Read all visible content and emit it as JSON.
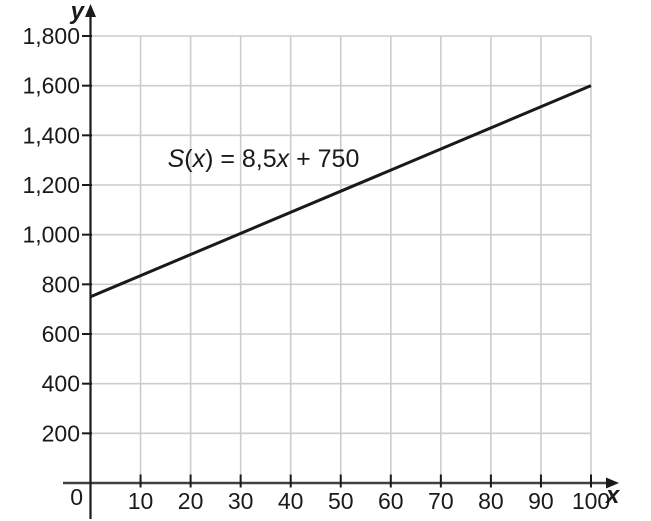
{
  "figure": {
    "background": "#ffffff"
  },
  "chart_data": {
    "type": "line",
    "title": "",
    "xlabel": "x",
    "ylabel": "y",
    "xlim": [
      0,
      100
    ],
    "ylim": [
      0,
      1800
    ],
    "grid": true,
    "legend": "none",
    "origin_label": "0",
    "x_ticks": [
      {
        "value": 10,
        "label": "10"
      },
      {
        "value": 20,
        "label": "20"
      },
      {
        "value": 30,
        "label": "30"
      },
      {
        "value": 40,
        "label": "40"
      },
      {
        "value": 50,
        "label": "50"
      },
      {
        "value": 60,
        "label": "60"
      },
      {
        "value": 70,
        "label": "70"
      },
      {
        "value": 80,
        "label": "80"
      },
      {
        "value": 90,
        "label": "90"
      },
      {
        "value": 100,
        "label": "100"
      }
    ],
    "y_ticks": [
      {
        "value": 200,
        "label": "200"
      },
      {
        "value": 400,
        "label": "400"
      },
      {
        "value": 600,
        "label": "600"
      },
      {
        "value": 800,
        "label": "800"
      },
      {
        "value": 1000,
        "label": "1,000"
      },
      {
        "value": 1200,
        "label": "1,200"
      },
      {
        "value": 1400,
        "label": "1,400"
      },
      {
        "value": 1600,
        "label": "1,600"
      },
      {
        "value": 1800,
        "label": "1,800"
      }
    ],
    "series": [
      {
        "name": "S(x) = 8,5x + 750",
        "slope": 8.5,
        "intercept": 750,
        "x": [
          0,
          100
        ],
        "y": [
          750,
          1600
        ],
        "color": "#1a1a1a",
        "stroke_width": 3
      }
    ],
    "annotation": {
      "text": "S(x) = 8,5x + 750",
      "x": 15.4,
      "y": 1273,
      "font_size": 25,
      "segments": [
        {
          "text": "S",
          "italic": true
        },
        {
          "text": "(",
          "italic": false
        },
        {
          "text": "x",
          "italic": true
        },
        {
          "text": ") = 8,5",
          "italic": false
        },
        {
          "text": "x",
          "italic": true
        },
        {
          "text": " + 750",
          "italic": false
        }
      ]
    },
    "colors": {
      "grid": "#cccccc",
      "axis": "#414042",
      "tick": "#1a1a1a",
      "text": "#1a1a1a"
    }
  }
}
